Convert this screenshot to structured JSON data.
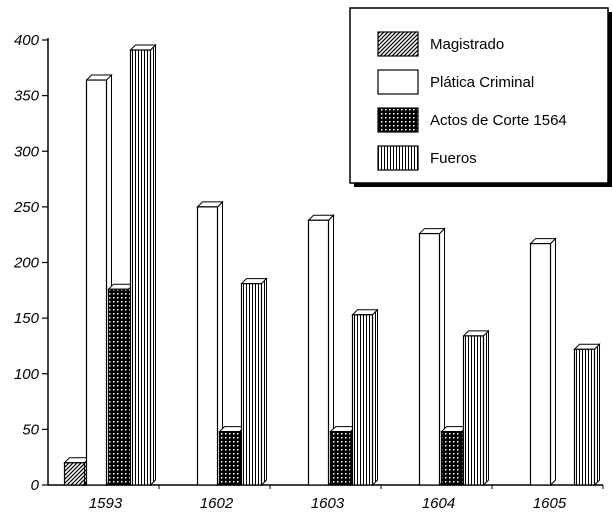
{
  "chart_data": {
    "type": "bar",
    "categories": [
      "1593",
      "1602",
      "1603",
      "1604",
      "1605"
    ],
    "ylim": [
      0,
      400
    ],
    "yticks": [
      "0",
      "50",
      "100",
      "150",
      "200",
      "250",
      "300",
      "350",
      "400"
    ],
    "legend_position": "top-right",
    "series": [
      {
        "name": "Magistrado",
        "pattern": "diagonal",
        "values": [
          20,
          null,
          null,
          null,
          null
        ]
      },
      {
        "name": "Plática Criminal",
        "pattern": "blank",
        "values": [
          364,
          250,
          238,
          226,
          217
        ]
      },
      {
        "name": "Actos de Corte 1564",
        "pattern": "dots",
        "values": [
          176,
          48,
          48,
          48,
          null
        ]
      },
      {
        "name": "Fueros",
        "pattern": "vertical",
        "values": [
          391,
          181,
          153,
          134,
          122
        ]
      }
    ]
  }
}
